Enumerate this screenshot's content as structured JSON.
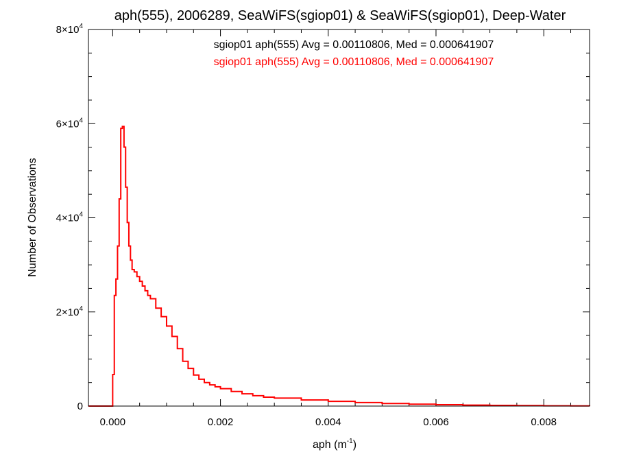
{
  "chart_data": {
    "type": "line",
    "title": "aph(555), 2006289, SeaWiFS(sgiop01) & SeaWiFS(sgiop01), Deep-Water",
    "xlabel_base": "aph (m",
    "xlabel_sup": "-1",
    "xlabel_close": ")",
    "ylabel": "Number of Observations",
    "xlim": [
      -0.00045,
      0.00885
    ],
    "ylim": [
      0,
      80000
    ],
    "x_ticks": [
      0.0,
      0.002,
      0.004,
      0.006,
      0.008
    ],
    "x_tick_labels": [
      "0.000",
      "0.002",
      "0.004",
      "0.006",
      "0.008"
    ],
    "y_ticks": [
      0,
      20000,
      40000,
      60000,
      80000
    ],
    "y_tick_labels": [
      {
        "mantissa": "0",
        "exponent": ""
      },
      {
        "mantissa": "2×10",
        "exponent": "4"
      },
      {
        "mantissa": "4×10",
        "exponent": "4"
      },
      {
        "mantissa": "6×10",
        "exponent": "4"
      },
      {
        "mantissa": "8×10",
        "exponent": "4"
      }
    ],
    "annotations": [
      {
        "text": "sgiop01 aph(555) Avg = 0.00110806, Med = 0.000641907",
        "color": "#000000"
      },
      {
        "text": "sgiop01 aph(555) Avg = 0.00110806, Med = 0.000641907",
        "color": "#ff0000"
      }
    ],
    "series": [
      {
        "color": "#ff0000",
        "step": true,
        "x": [
          -0.00045,
          -5e-05,
          0.0,
          3e-05,
          6e-05,
          9e-05,
          0.00012,
          0.00015,
          0.00018,
          0.00021,
          0.00024,
          0.00027,
          0.0003,
          0.00033,
          0.00036,
          0.0004,
          0.00045,
          0.0005,
          0.00055,
          0.0006,
          0.00065,
          0.0007,
          0.0008,
          0.0009,
          0.001,
          0.0011,
          0.0012,
          0.0013,
          0.0014,
          0.0015,
          0.0016,
          0.0017,
          0.0018,
          0.0019,
          0.002,
          0.0022,
          0.0024,
          0.0026,
          0.0028,
          0.003,
          0.0035,
          0.004,
          0.0045,
          0.005,
          0.0055,
          0.006,
          0.0065,
          0.007,
          0.0075,
          0.008,
          0.0085,
          0.00885
        ],
        "y": [
          0,
          0,
          6700,
          23500,
          27000,
          34000,
          44000,
          59000,
          59400,
          55000,
          46500,
          39000,
          34000,
          31000,
          29000,
          28500,
          27500,
          26500,
          25500,
          24500,
          23500,
          22800,
          20800,
          19000,
          17000,
          14800,
          12200,
          9500,
          8000,
          6600,
          5700,
          5000,
          4500,
          4100,
          3700,
          3100,
          2600,
          2200,
          1900,
          1700,
          1300,
          1000,
          750,
          550,
          400,
          300,
          200,
          150,
          100,
          60,
          30,
          0
        ]
      }
    ]
  }
}
